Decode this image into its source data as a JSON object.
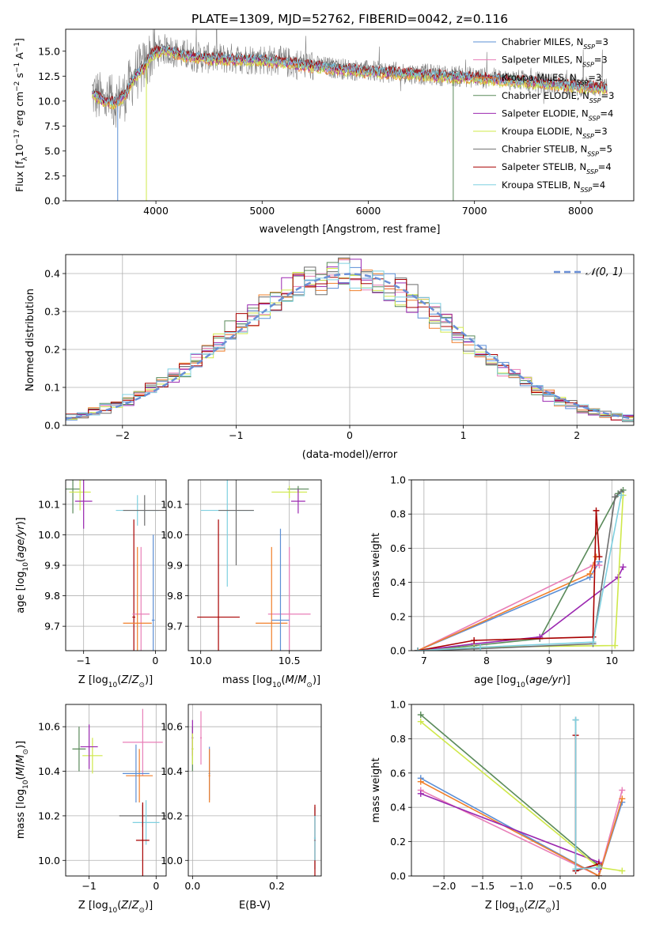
{
  "figure_title": "PLATE=1309, MJD=52762, FIBERID=0042, z=0.116",
  "colors": {
    "chabrier_miles": "#5b8fd6",
    "salpeter_miles": "#e87fb8",
    "kroupa_miles": "#f07f2a",
    "chabrier_elodie": "#5a8a5a",
    "salpeter_elodie": "#9b27b0",
    "kroupa_elodie": "#cfe84a",
    "chabrier_stelib": "#6e6e6e",
    "salpeter_stelib": "#a80000",
    "kroupa_stelib": "#7fd0e0",
    "data": "#808080",
    "gauss": "#6a8fd6",
    "grid": "#b0b0b0"
  },
  "chart_data": [
    {
      "id": "spectrum",
      "type": "line",
      "title": "",
      "xlabel": "wavelength [Angstrom, rest frame]",
      "ylabel": "Flux [f",
      "ylabel_full": "Flux [fλ10⁻¹⁷ erg cm⁻² s⁻¹ A⁻¹]",
      "xlim": [
        3150,
        8500
      ],
      "ylim": [
        0,
        17.2
      ],
      "xticks": [
        4000,
        5000,
        6000,
        7000,
        8000
      ],
      "yticks": [
        0.0,
        2.5,
        5.0,
        7.5,
        10.0,
        12.5,
        15.0
      ],
      "grid": false,
      "legend_position": "top-right",
      "legend": [
        {
          "key": "chabrier_miles",
          "label": "Chabrier MILES, N",
          "n": "3"
        },
        {
          "key": "salpeter_miles",
          "label": "Salpeter MILES, N",
          "n": "3"
        },
        {
          "key": "kroupa_miles",
          "label": "Kroupa MILES, N",
          "n": "3"
        },
        {
          "key": "chabrier_elodie",
          "label": "Chabrier ELODIE, N",
          "n": "3"
        },
        {
          "key": "salpeter_elodie",
          "label": "Salpeter ELODIE, N",
          "n": "4"
        },
        {
          "key": "kroupa_elodie",
          "label": "Kroupa ELODIE, N",
          "n": "3"
        },
        {
          "key": "chabrier_stelib",
          "label": "Chabrier STELIB, N",
          "n": "5"
        },
        {
          "key": "salpeter_stelib",
          "label": "Salpeter STELIB, N",
          "n": "4"
        },
        {
          "key": "kroupa_stelib",
          "label": "Kroupa STELIB, N",
          "n": "4"
        }
      ],
      "continuum": {
        "x": [
          3400,
          3500,
          3600,
          3700,
          3800,
          3900,
          3950,
          4000,
          4100,
          4200,
          4300,
          4500,
          5000,
          5500,
          6000,
          6500,
          7000,
          7500,
          8000,
          8250
        ],
        "y": [
          10.8,
          10.1,
          9.9,
          10.5,
          12.5,
          13.6,
          14.6,
          15.0,
          15.2,
          14.8,
          14.5,
          14.3,
          14.2,
          13.5,
          13.0,
          12.7,
          12.4,
          12.0,
          11.5,
          11.4
        ]
      },
      "spikes": [
        {
          "series": "chabrier_miles",
          "x": 3640,
          "y": 0
        },
        {
          "series": "kroupa_elodie",
          "x": 3910,
          "y": 0
        },
        {
          "series": "chabrier_elodie",
          "x": 6800,
          "y": 0
        }
      ]
    },
    {
      "id": "residuals",
      "type": "histogram",
      "xlabel": "(data-model)/error",
      "ylabel": "Normed distribution",
      "xlim": [
        -2.5,
        2.5
      ],
      "ylim": [
        0,
        0.45
      ],
      "xticks": [
        -2,
        -1,
        0,
        1,
        2
      ],
      "xtick_labels": [
        "−2",
        "−1",
        "0",
        "1",
        "2"
      ],
      "yticks": [
        0.0,
        0.1,
        0.2,
        0.3,
        0.4
      ],
      "grid": true,
      "legend_position": "top-right",
      "legend_label": "𝒩(0, 1)",
      "bin_width": 0.1,
      "gaussian": {
        "mu": 0,
        "sigma": 1
      }
    },
    {
      "id": "z_age",
      "type": "errorbar",
      "xlabel": "Z [log",
      "xlabel_full": "Z [log₁₀(Z/Z☉)]",
      "ylabel": "age  [log₁₀(age/yr)]",
      "xlim": [
        -1.25,
        0.15
      ],
      "ylim": [
        9.62,
        10.18
      ],
      "xticks": [
        -1,
        0
      ],
      "xtick_labels": [
        "−1",
        "0"
      ],
      "yticks": [
        9.7,
        9.8,
        9.9,
        10.0,
        10.1
      ],
      "grid": true,
      "points": [
        {
          "s": "chabrier_elodie",
          "x": -1.15,
          "xe": 0.1,
          "y": 10.15,
          "ye": 0.08
        },
        {
          "s": "kroupa_elodie",
          "x": -1.05,
          "xe": 0.15,
          "y": 10.14,
          "ye": 0.06
        },
        {
          "s": "salpeter_elodie",
          "x": -1.0,
          "xe": 0.12,
          "y": 10.11,
          "ye": 0.09
        },
        {
          "s": "kroupa_stelib",
          "x": -0.25,
          "xe": 0.3,
          "y": 10.08,
          "ye": 0.05
        },
        {
          "s": "chabrier_stelib",
          "x": -0.15,
          "xe": 0.3,
          "y": 10.08,
          "ye": 0.05
        },
        {
          "s": "salpeter_stelib",
          "x": -0.3,
          "xe": 0.02,
          "y": 9.73,
          "ye": 0.32
        },
        {
          "s": "salpeter_miles",
          "x": -0.2,
          "xe": 0.12,
          "y": 9.74,
          "ye": 0.22
        },
        {
          "s": "kroupa_miles",
          "x": -0.25,
          "xe": 0.2,
          "y": 9.71,
          "ye": 0.25
        },
        {
          "s": "chabrier_miles",
          "x": -0.03,
          "xe": 0.02,
          "y": 9.72,
          "ye": 0.28
        }
      ]
    },
    {
      "id": "mass_age",
      "type": "errorbar",
      "xlabel": "mass [log",
      "xlabel_full": "mass [log₁₀(M/M☉)]",
      "xlim": [
        9.93,
        10.68
      ],
      "ylim": [
        9.62,
        10.18
      ],
      "xticks": [
        10.0,
        10.5
      ],
      "xtick_labels": [
        "10.0",
        "10.5"
      ],
      "yticks": [
        9.7,
        9.8,
        9.9,
        10.0,
        10.1
      ],
      "grid": true,
      "points": [
        {
          "s": "chabrier_elodie",
          "x": 10.55,
          "xe": 0.06,
          "y": 10.15,
          "ye": 0.01
        },
        {
          "s": "kroupa_elodie",
          "x": 10.5,
          "xe": 0.1,
          "y": 10.14,
          "ye": 0.02
        },
        {
          "s": "salpeter_elodie",
          "x": 10.55,
          "xe": 0.04,
          "y": 10.11,
          "ye": 0.04
        },
        {
          "s": "kroupa_stelib",
          "x": 10.15,
          "xe": 0.15,
          "y": 10.08,
          "ye": 0.25
        },
        {
          "s": "chabrier_stelib",
          "x": 10.2,
          "xe": 0.1,
          "y": 10.08,
          "ye": 0.18
        },
        {
          "s": "salpeter_stelib",
          "x": 10.1,
          "xe": 0.12,
          "y": 9.73,
          "ye": 0.32
        },
        {
          "s": "salpeter_miles",
          "x": 10.5,
          "xe": 0.12,
          "y": 9.74,
          "ye": 0.22
        },
        {
          "s": "kroupa_miles",
          "x": 10.4,
          "xe": 0.09,
          "y": 9.71,
          "ye": 0.25
        },
        {
          "s": "chabrier_miles",
          "x": 10.45,
          "xe": 0.05,
          "y": 9.72,
          "ye": 0.3
        }
      ]
    },
    {
      "id": "age_weight",
      "type": "line",
      "xlabel": "age  [log",
      "xlabel_full": "age  [log₁₀(age/yr)]",
      "ylabel": "mass weight",
      "xlim": [
        6.8,
        10.35
      ],
      "ylim": [
        0,
        1
      ],
      "xticks": [
        7,
        8,
        9,
        10
      ],
      "yticks": [
        0.0,
        0.2,
        0.4,
        0.6,
        0.8,
        1.0
      ],
      "grid": true,
      "series": [
        {
          "s": "chabrier_miles",
          "x": [
            6.9,
            9.65,
            9.8
          ],
          "y": [
            0.0,
            0.43,
            0.52
          ]
        },
        {
          "s": "salpeter_miles",
          "x": [
            6.9,
            9.7,
            9.8
          ],
          "y": [
            0.0,
            0.5,
            0.5
          ]
        },
        {
          "s": "kroupa_miles",
          "x": [
            6.9,
            9.65,
            9.75
          ],
          "y": [
            0.0,
            0.45,
            0.55
          ]
        },
        {
          "s": "chabrier_elodie",
          "x": [
            6.9,
            7.8,
            8.85,
            10.1,
            10.18
          ],
          "y": [
            0.0,
            0.03,
            0.07,
            0.92,
            0.94
          ]
        },
        {
          "s": "salpeter_elodie",
          "x": [
            6.9,
            7.8,
            8.85,
            10.1,
            10.18
          ],
          "y": [
            0.0,
            0.04,
            0.08,
            0.43,
            0.49
          ]
        },
        {
          "s": "kroupa_elodie",
          "x": [
            6.9,
            7.8,
            10.05,
            10.18
          ],
          "y": [
            0.0,
            0.02,
            0.03,
            0.91
          ]
        },
        {
          "s": "chabrier_stelib",
          "x": [
            6.9,
            7.8,
            9.7,
            10.05,
            10.15
          ],
          "y": [
            0.0,
            0.01,
            0.04,
            0.9,
            0.93
          ]
        },
        {
          "s": "salpeter_stelib",
          "x": [
            6.9,
            7.8,
            9.7,
            9.75,
            9.8
          ],
          "y": [
            0.0,
            0.06,
            0.08,
            0.82,
            0.55
          ]
        },
        {
          "s": "kroupa_stelib",
          "x": [
            6.9,
            7.9,
            9.7,
            10.15
          ],
          "y": [
            0.0,
            0.02,
            0.05,
            0.91
          ]
        }
      ]
    },
    {
      "id": "z_mass",
      "type": "errorbar",
      "xlabel": "Z [log",
      "xlabel_full": "Z [log₁₀(Z/Z☉)]",
      "ylabel": "mass [log₁₀(M/M☉)]",
      "xlim": [
        -1.35,
        0.15
      ],
      "ylim": [
        9.93,
        10.7
      ],
      "xticks": [
        -1,
        0
      ],
      "xtick_labels": [
        "−1",
        "0"
      ],
      "yticks": [
        10.0,
        10.2,
        10.4,
        10.6
      ],
      "grid": true,
      "points": [
        {
          "s": "chabrier_elodie",
          "x": -1.15,
          "xe": 0.1,
          "y": 10.5,
          "ye": 0.1
        },
        {
          "s": "kroupa_elodie",
          "x": -0.95,
          "xe": 0.15,
          "y": 10.47,
          "ye": 0.08
        },
        {
          "s": "salpeter_elodie",
          "x": -1.0,
          "xe": 0.13,
          "y": 10.51,
          "ye": 0.1
        },
        {
          "s": "salpeter_miles",
          "x": -0.2,
          "xe": 0.3,
          "y": 10.53,
          "ye": 0.15
        },
        {
          "s": "kroupa_miles",
          "x": -0.25,
          "xe": 0.2,
          "y": 10.38,
          "ye": 0.12
        },
        {
          "s": "chabrier_miles",
          "x": -0.3,
          "xe": 0.2,
          "y": 10.39,
          "ye": 0.13
        },
        {
          "s": "chabrier_stelib",
          "x": -0.2,
          "xe": 0.35,
          "y": 10.2,
          "ye": 0.05
        },
        {
          "s": "kroupa_stelib",
          "x": -0.15,
          "xe": 0.2,
          "y": 10.17,
          "ye": 0.1
        },
        {
          "s": "salpeter_stelib",
          "x": -0.2,
          "xe": 0.1,
          "y": 10.09,
          "ye": 0.17
        }
      ]
    },
    {
      "id": "ebv_mass",
      "type": "errorbar",
      "xlabel": "E(B-V)",
      "xlim": [
        -0.01,
        0.305
      ],
      "ylim": [
        9.93,
        10.7
      ],
      "xticks": [
        0.0,
        0.2
      ],
      "xtick_labels": [
        "0.0",
        "0.2"
      ],
      "yticks": [
        10.0,
        10.2,
        10.4,
        10.6
      ],
      "grid": true,
      "points": [
        {
          "s": "chabrier_elodie",
          "x": 0.0,
          "xe": 0.002,
          "y": 10.5,
          "ye": 0.1
        },
        {
          "s": "salpeter_elodie",
          "x": 0.0,
          "xe": 0.002,
          "y": 10.55,
          "ye": 0.08
        },
        {
          "s": "kroupa_elodie",
          "x": 0.0,
          "xe": 0.002,
          "y": 10.5,
          "ye": 0.07
        },
        {
          "s": "salpeter_miles",
          "x": 0.02,
          "xe": 0.002,
          "y": 10.55,
          "ye": 0.12
        },
        {
          "s": "chabrier_miles",
          "x": 0.04,
          "xe": 0.002,
          "y": 10.39,
          "ye": 0.12
        },
        {
          "s": "kroupa_miles",
          "x": 0.04,
          "xe": 0.002,
          "y": 10.38,
          "ye": 0.12
        },
        {
          "s": "chabrier_stelib",
          "x": 0.29,
          "xe": 0.002,
          "y": 10.1,
          "ye": 0.14
        },
        {
          "s": "salpeter_stelib",
          "x": 0.29,
          "xe": 0.002,
          "y": 10.09,
          "ye": 0.16
        },
        {
          "s": "kroupa_stelib",
          "x": 0.29,
          "xe": 0.002,
          "y": 10.1,
          "ye": 0.1
        }
      ]
    },
    {
      "id": "z_weight",
      "type": "line",
      "xlabel": "Z [log",
      "xlabel_full": "Z [log₁₀(Z/Z☉)]",
      "ylabel": "mass weight",
      "xlim": [
        -2.42,
        0.45
      ],
      "ylim": [
        0,
        1
      ],
      "xticks": [
        -2.0,
        -1.5,
        -1.0,
        -0.5,
        0.0
      ],
      "xtick_labels": [
        "−2.0",
        "−1.5",
        "−1.0",
        "−0.5",
        "0.0"
      ],
      "yticks": [
        0.0,
        0.2,
        0.4,
        0.6,
        0.8,
        1.0
      ],
      "grid": true,
      "series": [
        {
          "s": "chabrier_miles",
          "x": [
            -2.3,
            0.0,
            0.3
          ],
          "y": [
            0.57,
            0.0,
            0.43
          ]
        },
        {
          "s": "salpeter_miles",
          "x": [
            -2.3,
            0.0,
            0.3
          ],
          "y": [
            0.5,
            0.0,
            0.5
          ]
        },
        {
          "s": "kroupa_miles",
          "x": [
            -2.3,
            0.0,
            0.3
          ],
          "y": [
            0.55,
            0.0,
            0.45
          ]
        },
        {
          "s": "chabrier_elodie",
          "x": [
            -2.3,
            0.0
          ],
          "y": [
            0.94,
            0.06
          ]
        },
        {
          "s": "salpeter_elodie",
          "x": [
            -2.3,
            0.0,
            0.0
          ],
          "y": [
            0.48,
            0.08,
            0.04
          ]
        },
        {
          "s": "kroupa_elodie",
          "x": [
            -2.3,
            0.0,
            0.3
          ],
          "y": [
            0.9,
            0.05,
            0.03
          ]
        },
        {
          "s": "chabrier_stelib",
          "x": [
            -0.3,
            -0.3,
            0.0
          ],
          "y": [
            0.91,
            0.04,
            0.05
          ]
        },
        {
          "s": "salpeter_stelib",
          "x": [
            -0.3,
            -0.3,
            0.0
          ],
          "y": [
            0.82,
            0.03,
            0.07
          ]
        },
        {
          "s": "kroupa_stelib",
          "x": [
            -0.3,
            -0.3,
            0.0
          ],
          "y": [
            0.91,
            0.04,
            0.05
          ]
        }
      ]
    }
  ]
}
